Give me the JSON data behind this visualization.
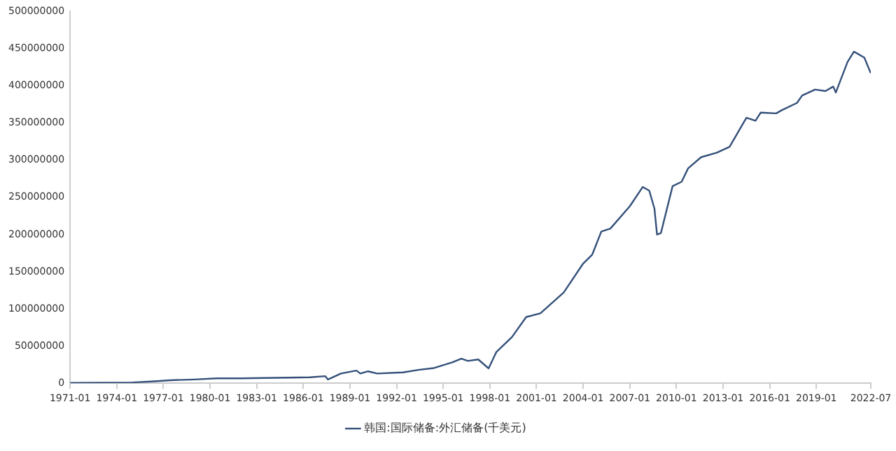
{
  "chart_data": {
    "type": "line",
    "x": [
      "1971-01",
      "1973-01",
      "1975-01",
      "1976-06",
      "1977-06",
      "1979-01",
      "1980-06",
      "1982-01",
      "1983-06",
      "1985-01",
      "1986-06",
      "1987-06",
      "1987-08",
      "1988-06",
      "1989-06",
      "1989-09",
      "1990-03",
      "1990-10",
      "1992-06",
      "1993-06",
      "1994-06",
      "1995-08",
      "1996-03",
      "1996-08",
      "1997-04",
      "1997-12",
      "1998-06",
      "1999-06",
      "2000-05",
      "2001-04",
      "2002-10",
      "2004-01",
      "2004-08",
      "2005-03",
      "2005-10",
      "2007-01",
      "2007-11",
      "2008-04",
      "2008-08",
      "2008-10",
      "2009-01",
      "2009-10",
      "2010-05",
      "2010-10",
      "2011-08",
      "2012-08",
      "2013-06",
      "2014-07",
      "2015-02",
      "2015-06",
      "2016-06",
      "2016-10",
      "2017-10",
      "2018-02",
      "2018-12",
      "2019-08",
      "2020-02",
      "2020-04",
      "2021-01",
      "2021-06",
      "2021-09",
      "2022-02",
      "2022-07"
    ],
    "series": [
      {
        "name": "韩国:国际储备:外汇储备(千美元)",
        "color": "#34507a",
        "values": [
          500000,
          800000,
          1000000,
          2500000,
          4000000,
          5000000,
          6500000,
          6500000,
          7000000,
          7500000,
          8000000,
          9500000,
          5000000,
          13000000,
          17000000,
          13000000,
          16000000,
          13000000,
          14500000,
          18000000,
          20500000,
          28000000,
          33000000,
          30000000,
          32000000,
          20000000,
          42000000,
          62000000,
          89000000,
          94000000,
          122000000,
          161000000,
          173000000,
          204000000,
          208000000,
          238000000,
          264000000,
          259000000,
          235000000,
          200000000,
          202000000,
          265000000,
          271000000,
          289000000,
          304000000,
          310000000,
          318000000,
          357000000,
          353000000,
          364000000,
          363000000,
          367000000,
          377000000,
          387000000,
          395000000,
          393000000,
          399000000,
          391000000,
          432000000,
          446000000,
          443000000,
          438000000,
          417000000
        ]
      }
    ],
    "xlim": [
      "1971-01",
      "2022-07"
    ],
    "xticks": [
      "1971-01",
      "1974-01",
      "1977-01",
      "1980-01",
      "1983-01",
      "1986-01",
      "1989-01",
      "1992-01",
      "1995-01",
      "1998-01",
      "2001-01",
      "2004-01",
      "2007-01",
      "2010-01",
      "2013-01",
      "2016-01",
      "2019-01",
      "2022-07"
    ],
    "ylim": [
      0,
      500000000
    ],
    "yticks": [
      0,
      50000000,
      100000000,
      150000000,
      200000000,
      250000000,
      300000000,
      350000000,
      400000000,
      450000000,
      500000000
    ],
    "grid": false,
    "legend": "bottom",
    "marker": "none",
    "line_style": "solid"
  }
}
